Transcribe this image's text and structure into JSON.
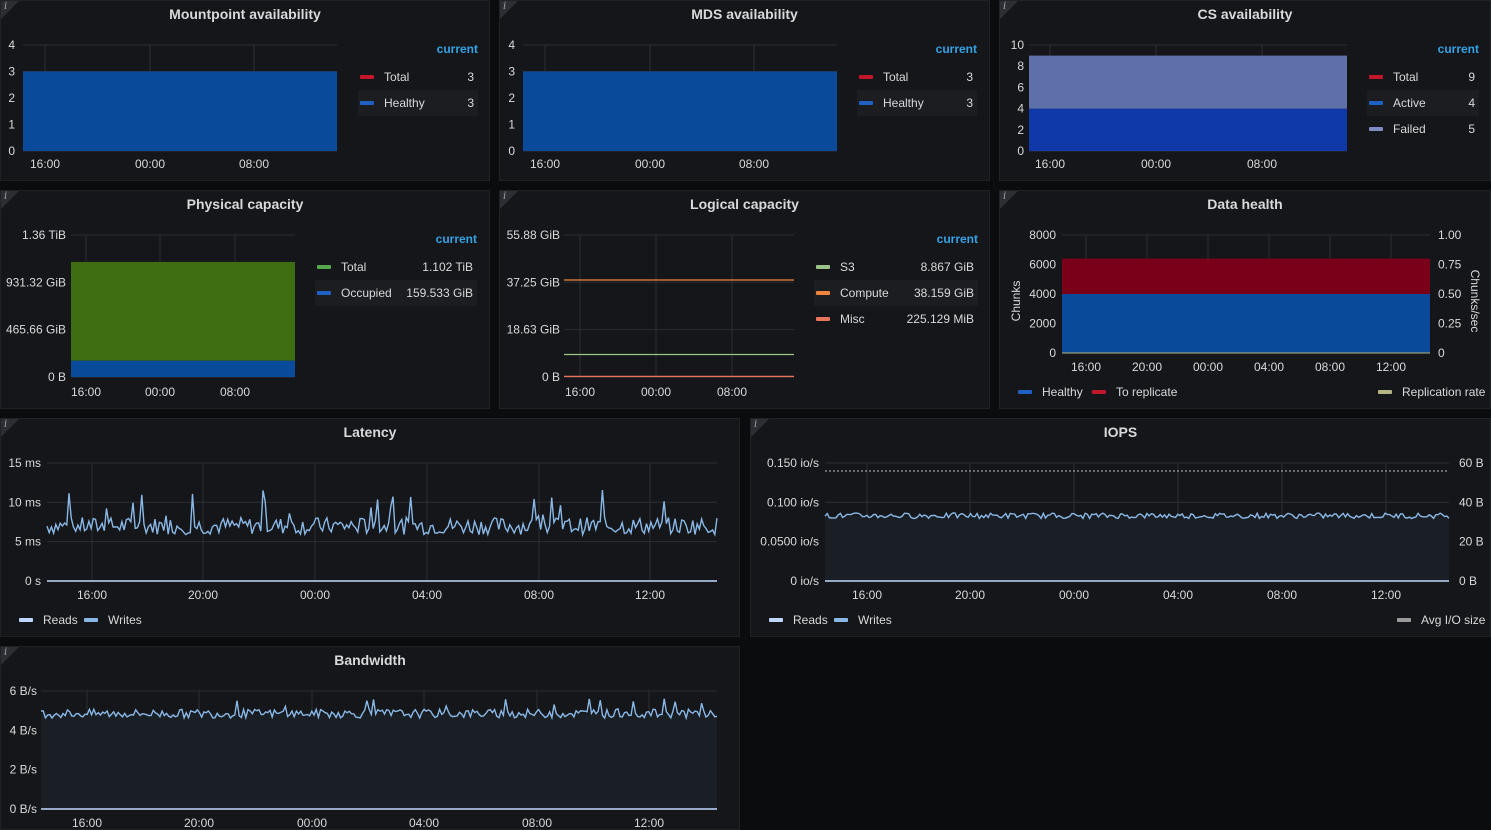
{
  "colors": {
    "blue": "#0a4a9a",
    "green": "#3f6d12",
    "red": "#7a0019",
    "lavender": "#5f6fa8",
    "cyan": "#8ab8e6",
    "orange": "#ef843c",
    "salmon": "#e8745c",
    "mint": "#9ac48a",
    "olive": "#b5b583",
    "grid": "#2c2e33",
    "legend_hdr": "#33a2e5"
  },
  "panels": {
    "mountpoint": {
      "title": "Mountpoint availability",
      "legend_header": "current",
      "legend": [
        {
          "name": "Total",
          "value": "3",
          "color": "#c4162a"
        },
        {
          "name": "Healthy",
          "value": "3",
          "color": "#1f60c4"
        }
      ],
      "yticks": [
        "4",
        "3",
        "2",
        "1",
        "0"
      ],
      "xticks": [
        "16:00",
        "00:00",
        "08:00"
      ]
    },
    "mds": {
      "title": "MDS availability",
      "legend_header": "current",
      "legend": [
        {
          "name": "Total",
          "value": "3",
          "color": "#c4162a"
        },
        {
          "name": "Healthy",
          "value": "3",
          "color": "#1f60c4"
        }
      ],
      "yticks": [
        "4",
        "3",
        "2",
        "1",
        "0"
      ],
      "xticks": [
        "16:00",
        "00:00",
        "08:00"
      ]
    },
    "cs": {
      "title": "CS availability",
      "legend_header": "current",
      "legend": [
        {
          "name": "Total",
          "value": "9",
          "color": "#c4162a"
        },
        {
          "name": "Active",
          "value": "4",
          "color": "#1f60c4"
        },
        {
          "name": "Failed",
          "value": "5",
          "color": "#7e8bc2"
        }
      ],
      "yticks": [
        "10",
        "8",
        "6",
        "4",
        "2",
        "0"
      ],
      "xticks": [
        "16:00",
        "00:00",
        "08:00"
      ]
    },
    "physical": {
      "title": "Physical capacity",
      "legend_header": "current",
      "legend": [
        {
          "name": "Total",
          "value": "1.102 TiB",
          "color": "#56a64b"
        },
        {
          "name": "Occupied",
          "value": "159.533 GiB",
          "color": "#1f60c4"
        }
      ],
      "yticks": [
        "1.36 TiB",
        "931.32 GiB",
        "465.66 GiB",
        "0 B"
      ],
      "xticks": [
        "16:00",
        "00:00",
        "08:00"
      ]
    },
    "logical": {
      "title": "Logical capacity",
      "legend_header": "current",
      "legend": [
        {
          "name": "S3",
          "value": "8.867 GiB",
          "color": "#9ac48a"
        },
        {
          "name": "Compute",
          "value": "38.159 GiB",
          "color": "#ef843c"
        },
        {
          "name": "Misc",
          "value": "225.129 MiB",
          "color": "#e8745c"
        }
      ],
      "yticks": [
        "55.88 GiB",
        "37.25 GiB",
        "18.63 GiB",
        "0 B"
      ],
      "xticks": [
        "16:00",
        "00:00",
        "08:00"
      ]
    },
    "datahealth": {
      "title": "Data health",
      "yticks_left": [
        "8000",
        "6000",
        "4000",
        "2000",
        "0"
      ],
      "yticks_right": [
        "1.00",
        "0.75",
        "0.50",
        "0.25",
        "0"
      ],
      "ylabel_left": "Chunks",
      "ylabel_right": "Chunks/sec",
      "xticks": [
        "16:00",
        "20:00",
        "00:00",
        "04:00",
        "08:00",
        "12:00"
      ],
      "legend": [
        {
          "name": "Healthy",
          "color": "#1f60c4"
        },
        {
          "name": "To replicate",
          "color": "#c4162a"
        },
        {
          "name": "Replication rate",
          "color": "#b5b583"
        }
      ]
    },
    "latency": {
      "title": "Latency",
      "yticks": [
        "15 ms",
        "10 ms",
        "5 ms",
        "0 s"
      ],
      "xticks": [
        "16:00",
        "20:00",
        "00:00",
        "04:00",
        "08:00",
        "12:00"
      ],
      "legend": [
        {
          "name": "Reads",
          "color": "#c0d8ff"
        },
        {
          "name": "Writes",
          "color": "#8ab8e6"
        }
      ]
    },
    "iops": {
      "title": "IOPS",
      "yticks_left": [
        "0.150 io/s",
        "0.100 io/s",
        "0.0500 io/s",
        "0 io/s"
      ],
      "yticks_right": [
        "60 B",
        "40 B",
        "20 B",
        "0 B"
      ],
      "xticks": [
        "16:00",
        "20:00",
        "00:00",
        "04:00",
        "08:00",
        "12:00"
      ],
      "legend": [
        {
          "name": "Reads",
          "color": "#c0d8ff"
        },
        {
          "name": "Writes",
          "color": "#8ab8e6"
        }
      ],
      "legend_right": {
        "name": "Avg I/O size",
        "color": "#9a9a9a"
      }
    },
    "bandwidth": {
      "title": "Bandwidth",
      "yticks": [
        "6 B/s",
        "4 B/s",
        "2 B/s",
        "0 B/s"
      ],
      "xticks": [
        "16:00",
        "20:00",
        "00:00",
        "04:00",
        "08:00",
        "12:00"
      ]
    }
  },
  "chart_data": [
    {
      "type": "area",
      "title": "Mountpoint availability",
      "series": [
        {
          "name": "Total",
          "values": [
            3,
            3
          ]
        },
        {
          "name": "Healthy",
          "values": [
            3,
            3
          ]
        }
      ],
      "ylim": [
        0,
        4
      ]
    },
    {
      "type": "area",
      "title": "MDS availability",
      "series": [
        {
          "name": "Total",
          "values": [
            3,
            3
          ]
        },
        {
          "name": "Healthy",
          "values": [
            3,
            3
          ]
        }
      ],
      "ylim": [
        0,
        4
      ]
    },
    {
      "type": "area",
      "title": "CS availability",
      "series": [
        {
          "name": "Active",
          "values": [
            4,
            4
          ]
        },
        {
          "name": "Failed",
          "values": [
            5,
            5
          ]
        }
      ],
      "ylim": [
        0,
        10
      ]
    },
    {
      "type": "area",
      "title": "Physical capacity",
      "series": [
        {
          "name": "Total",
          "values": [
            1.102,
            1.102
          ],
          "unit": "TiB"
        },
        {
          "name": "Occupied",
          "values": [
            159.533,
            159.533
          ],
          "unit": "GiB"
        }
      ]
    },
    {
      "type": "line",
      "title": "Logical capacity",
      "series": [
        {
          "name": "S3",
          "values": [
            8.867,
            8.867
          ],
          "unit": "GiB"
        },
        {
          "name": "Compute",
          "values": [
            38.159,
            38.159
          ],
          "unit": "GiB"
        },
        {
          "name": "Misc",
          "values": [
            225.129,
            225.129
          ],
          "unit": "MiB"
        }
      ]
    },
    {
      "type": "area",
      "title": "Data health",
      "series": [
        {
          "name": "Healthy",
          "values": [
            4000,
            4000
          ]
        },
        {
          "name": "To replicate",
          "values": [
            2400,
            2400
          ]
        }
      ],
      "ylim": [
        0,
        8000
      ]
    },
    {
      "type": "line",
      "title": "Latency",
      "series": [
        {
          "name": "Writes",
          "values": [
            6.5,
            7,
            6.8,
            7.2,
            6.9,
            7.5,
            7.1,
            6.8,
            7.4,
            7,
            7.6,
            7.3,
            7.8,
            7.2,
            7.5,
            7.9,
            7.4,
            7.1,
            7.6,
            7.3
          ],
          "unit": "ms"
        }
      ],
      "ylim": [
        0,
        15
      ]
    },
    {
      "type": "line",
      "title": "IOPS",
      "series": [
        {
          "name": "Writes",
          "values": [
            0.083,
            0.084,
            0.083,
            0.082,
            0.084,
            0.083,
            0.084,
            0.083,
            0.083,
            0.084
          ],
          "unit": "io/s"
        }
      ],
      "ylim": [
        0,
        0.15
      ]
    },
    {
      "type": "line",
      "title": "Bandwidth",
      "series": [
        {
          "name": "Writes",
          "values": [
            4.8,
            4.9,
            4.8,
            4.9,
            4.8,
            4.9,
            4.8,
            4.9,
            4.8,
            4.9
          ],
          "unit": "B/s"
        }
      ],
      "ylim": [
        0,
        6
      ]
    }
  ]
}
